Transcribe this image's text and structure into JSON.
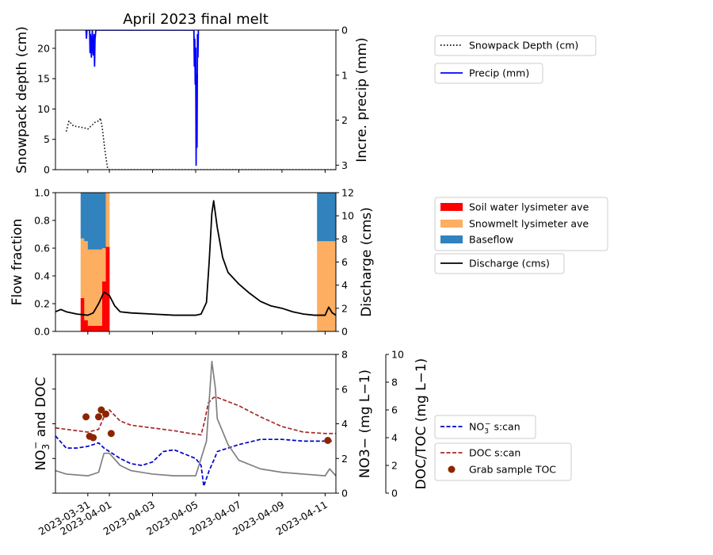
{
  "figure_title": "April 2023 final melt",
  "chart_data": [
    {
      "type": "line",
      "title": "April 2023 final melt",
      "ylabel": "Snowpack depth (cm)",
      "y2label": "Incre. precip (mm)",
      "ylim": [
        0,
        23
      ],
      "y2lim": [
        3.1,
        0
      ],
      "y2_inverted": true,
      "yticks": [
        "0",
        "5",
        "10",
        "15",
        "20"
      ],
      "y2ticks": [
        "0",
        "1",
        "2",
        "3"
      ],
      "legend": "right",
      "series": [
        {
          "name": "Snowpack Depth (cm)",
          "style": "dotted",
          "color": "#000000",
          "axis": "left",
          "points": [
            [
              "2023-03-30",
              6.3
            ],
            [
              "2023-03-30T03",
              8.0
            ],
            [
              "2023-03-30T08",
              7.2
            ],
            [
              "2023-03-30T20",
              6.9
            ],
            [
              "2023-03-31",
              6.7
            ],
            [
              "2023-03-31T08",
              7.8
            ],
            [
              "2023-03-31T13",
              8.1
            ],
            [
              "2023-03-31T14",
              8.5
            ],
            [
              "2023-03-31T16",
              7.0
            ],
            [
              "2023-03-31T19",
              3.2
            ],
            [
              "2023-03-31T22",
              0.2
            ],
            [
              "2023-04-01",
              0
            ],
            [
              "2023-04-11T12",
              0
            ]
          ]
        },
        {
          "name": "Precip (mm)",
          "style": "solid",
          "color": "#0000ff",
          "axis": "right",
          "points": [
            [
              "2023-03-30T22",
              0
            ],
            [
              "2023-03-30T22.5",
              0.18
            ],
            [
              "2023-03-30T23",
              0
            ],
            [
              "2023-03-31T02",
              0
            ],
            [
              "2023-03-31T02.5",
              0.5
            ],
            [
              "2023-03-31T03",
              0.1
            ],
            [
              "2023-03-31T04",
              0.6
            ],
            [
              "2023-03-31T05",
              0
            ],
            [
              "2023-03-31T06",
              0.55
            ],
            [
              "2023-03-31T07",
              0.1
            ],
            [
              "2023-03-31T07.5",
              0.8
            ],
            [
              "2023-03-31T08",
              0.2
            ],
            [
              "2023-03-31T09",
              0
            ],
            [
              "2023-04-04T22",
              0
            ],
            [
              "2023-04-04T22.5",
              0.8
            ],
            [
              "2023-04-04T23",
              0.2
            ],
            [
              "2023-04-04T23.5",
              1.2
            ],
            [
              "2023-04-05",
              0.4
            ],
            [
              "2023-04-05T00.5",
              3.0
            ],
            [
              "2023-04-05T01",
              1.0
            ],
            [
              "2023-04-05T01.5",
              2.6
            ],
            [
              "2023-04-05T02",
              0.1
            ],
            [
              "2023-04-05T02.5",
              0.6
            ],
            [
              "2023-04-05T03",
              0
            ]
          ]
        }
      ]
    },
    {
      "type": "area",
      "ylabel": "Flow fraction",
      "y2label": "Discharge (cms)",
      "ylim": [
        0,
        1
      ],
      "y2lim": [
        0,
        12
      ],
      "yticks": [
        "0.0",
        "0.2",
        "0.4",
        "0.6",
        "0.8",
        "1.0"
      ],
      "y2ticks": [
        "0",
        "2",
        "4",
        "6",
        "8",
        "10",
        "12"
      ],
      "legend": "right",
      "stacked_bins": [
        {
          "start": "2023-03-30T16",
          "end": "2023-03-30T20",
          "soil": 0.24,
          "snowmelt": 0.43,
          "baseflow": 0.33
        },
        {
          "start": "2023-03-30T20",
          "end": "2023-03-31",
          "soil": 0.08,
          "snowmelt": 0.57,
          "baseflow": 0.35
        },
        {
          "start": "2023-03-31",
          "end": "2023-03-31T08",
          "soil": 0.04,
          "snowmelt": 0.55,
          "baseflow": 0.41
        },
        {
          "start": "2023-03-31T08",
          "end": "2023-03-31T16",
          "soil": 0.04,
          "snowmelt": 0.55,
          "baseflow": 0.41
        },
        {
          "start": "2023-03-31T16",
          "end": "2023-03-31T20",
          "soil": 0.36,
          "snowmelt": 0.24,
          "baseflow": 0.4
        },
        {
          "start": "2023-03-31T20",
          "end": "2023-04-01",
          "soil": 0.61,
          "snowmelt": 0.39,
          "baseflow": 0
        },
        {
          "start": "2023-04-10T15",
          "end": "2023-04-11T12",
          "soil": 0,
          "snowmelt": 0.65,
          "baseflow": 0.35
        }
      ],
      "series": [
        {
          "name": "Soil water lysimeter ave",
          "color": "#ff0000"
        },
        {
          "name": "Snowmelt lysimeter ave",
          "color": "#fdae61"
        },
        {
          "name": "Baseflow",
          "color": "#3182bd"
        },
        {
          "name": "Discharge (cms)",
          "color": "#000000",
          "style": "solid",
          "points": [
            [
              "2023-03-29T12",
              1.7
            ],
            [
              "2023-03-29T18",
              1.9
            ],
            [
              "2023-03-30",
              1.7
            ],
            [
              "2023-03-30T12",
              1.5
            ],
            [
              "2023-03-31",
              1.4
            ],
            [
              "2023-03-31T06",
              1.6
            ],
            [
              "2023-03-31T12",
              2.4
            ],
            [
              "2023-03-31T18",
              3.4
            ],
            [
              "2023-04-01",
              3.1
            ],
            [
              "2023-04-01T06",
              2.2
            ],
            [
              "2023-04-01T12",
              1.7
            ],
            [
              "2023-04-02",
              1.6
            ],
            [
              "2023-04-03",
              1.5
            ],
            [
              "2023-04-04",
              1.4
            ],
            [
              "2023-04-05",
              1.4
            ],
            [
              "2023-04-05T06",
              1.5
            ],
            [
              "2023-04-05T12",
              2.5
            ],
            [
              "2023-04-05T15",
              6.0
            ],
            [
              "2023-04-05T18",
              10.2
            ],
            [
              "2023-04-05T20",
              11.3
            ],
            [
              "2023-04-06",
              9.0
            ],
            [
              "2023-04-06T06",
              6.4
            ],
            [
              "2023-04-06T12",
              5.1
            ],
            [
              "2023-04-07",
              4.1
            ],
            [
              "2023-04-07T12",
              3.3
            ],
            [
              "2023-04-08",
              2.6
            ],
            [
              "2023-04-08T12",
              2.2
            ],
            [
              "2023-04-09",
              2.0
            ],
            [
              "2023-04-09T12",
              1.7
            ],
            [
              "2023-04-10",
              1.5
            ],
            [
              "2023-04-10T12",
              1.4
            ],
            [
              "2023-04-11",
              1.4
            ],
            [
              "2023-04-11T04",
              2.1
            ],
            [
              "2023-04-11T08",
              1.6
            ],
            [
              "2023-04-11T12",
              1.4
            ]
          ]
        }
      ]
    },
    {
      "type": "line",
      "ylabel_main": "NO",
      "ylabel_sub": "3",
      "ylabel_sup": "−",
      "ylabel_rest": " and DOC",
      "y2label": "NO3− (mg L−1)",
      "y3label": "DOC/TOC (mg L−1)",
      "y2lim": [
        0,
        8
      ],
      "y3lim": [
        0,
        10
      ],
      "y2ticks": [
        "0",
        "2",
        "4",
        "6",
        "8"
      ],
      "y3ticks": [
        "0",
        "2",
        "4",
        "6",
        "8",
        "10"
      ],
      "xticks": [
        "2023-03-31",
        "2023-04-01",
        "2023-04-03",
        "2023-04-05",
        "2023-04-07",
        "2023-04-09",
        "2023-04-11"
      ],
      "legend": "right",
      "series": [
        {
          "name": "NO3− s:can",
          "color": "#0000cc",
          "style": "dashed",
          "axis": "NO3",
          "points": [
            [
              "2023-03-29T12",
              3.3
            ],
            [
              "2023-03-30",
              2.6
            ],
            [
              "2023-03-30T12",
              2.6
            ],
            [
              "2023-03-31",
              2.7
            ],
            [
              "2023-03-31T12",
              2.9
            ],
            [
              "2023-03-31T18",
              2.6
            ],
            [
              "2023-04-01",
              2.4
            ],
            [
              "2023-04-01T12",
              2.0
            ],
            [
              "2023-04-02",
              1.7
            ],
            [
              "2023-04-02T12",
              1.6
            ],
            [
              "2023-04-03",
              1.8
            ],
            [
              "2023-04-03T12",
              2.4
            ],
            [
              "2023-04-04",
              2.5
            ],
            [
              "2023-04-05",
              2.0
            ],
            [
              "2023-04-05T06",
              1.6
            ],
            [
              "2023-04-05T09",
              0.4
            ],
            [
              "2023-04-05T15",
              1.3
            ],
            [
              "2023-04-05T21",
              2.0
            ],
            [
              "2023-04-06",
              2.4
            ],
            [
              "2023-04-06T12",
              2.6
            ],
            [
              "2023-04-07",
              2.8
            ],
            [
              "2023-04-08",
              3.1
            ],
            [
              "2023-04-09",
              3.1
            ],
            [
              "2023-04-10",
              3.0
            ],
            [
              "2023-04-11",
              3.0
            ],
            [
              "2023-04-11T08",
              3.0
            ]
          ]
        },
        {
          "name": "DOC s:can",
          "color": "#a52a2a",
          "style": "dashed",
          "axis": "DOC",
          "points": [
            [
              "2023-03-29T12",
              4.7
            ],
            [
              "2023-03-30",
              4.6
            ],
            [
              "2023-03-31",
              4.4
            ],
            [
              "2023-03-31T12",
              4.6
            ],
            [
              "2023-03-31T18",
              5.5
            ],
            [
              "2023-04-01",
              6.0
            ],
            [
              "2023-04-01T12",
              5.2
            ],
            [
              "2023-04-02",
              4.9
            ],
            [
              "2023-04-03",
              4.7
            ],
            [
              "2023-04-04",
              4.5
            ],
            [
              "2023-04-04T18",
              4.3
            ],
            [
              "2023-04-05T06",
              4.2
            ],
            [
              "2023-04-05T10",
              5.2
            ],
            [
              "2023-04-05T14",
              6.5
            ],
            [
              "2023-04-05T20",
              6.9
            ],
            [
              "2023-04-06",
              6.9
            ],
            [
              "2023-04-07",
              6.3
            ],
            [
              "2023-04-08",
              5.5
            ],
            [
              "2023-04-09",
              4.8
            ],
            [
              "2023-04-10",
              4.4
            ],
            [
              "2023-04-11",
              4.3
            ],
            [
              "2023-04-11T12",
              4.3
            ]
          ]
        },
        {
          "name": "",
          "color": "#808080",
          "style": "solid",
          "axis": "NO3",
          "points": [
            [
              "2023-03-29T12",
              1.3
            ],
            [
              "2023-03-30",
              1.1
            ],
            [
              "2023-03-31",
              1.0
            ],
            [
              "2023-03-31T12",
              1.2
            ],
            [
              "2023-03-31T18",
              2.3
            ],
            [
              "2023-04-01",
              2.3
            ],
            [
              "2023-04-01T12",
              1.6
            ],
            [
              "2023-04-02",
              1.3
            ],
            [
              "2023-04-03",
              1.1
            ],
            [
              "2023-04-04",
              1.0
            ],
            [
              "2023-04-05",
              1.0
            ],
            [
              "2023-04-05T12",
              3.0
            ],
            [
              "2023-04-05T18",
              7.6
            ],
            [
              "2023-04-05T22",
              6.0
            ],
            [
              "2023-04-06",
              4.3
            ],
            [
              "2023-04-06T12",
              2.8
            ],
            [
              "2023-04-07",
              1.9
            ],
            [
              "2023-04-08",
              1.4
            ],
            [
              "2023-04-09",
              1.2
            ],
            [
              "2023-04-10",
              1.1
            ],
            [
              "2023-04-11",
              1.0
            ],
            [
              "2023-04-11T05",
              1.4
            ],
            [
              "2023-04-11T12",
              1.0
            ]
          ]
        },
        {
          "name": "Grab sample TOC",
          "color": "#8b2500",
          "style": "scatter",
          "axis": "DOC",
          "points": [
            [
              "2023-03-30T22",
              5.5
            ],
            [
              "2023-03-31T02",
              4.1
            ],
            [
              "2023-03-31T06",
              4.0
            ],
            [
              "2023-03-31T12",
              5.5
            ],
            [
              "2023-03-31T15",
              6.0
            ],
            [
              "2023-03-31T20",
              5.7
            ],
            [
              "2023-04-01T02",
              4.3
            ],
            [
              "2023-04-11T03",
              3.8
            ]
          ]
        }
      ]
    }
  ]
}
